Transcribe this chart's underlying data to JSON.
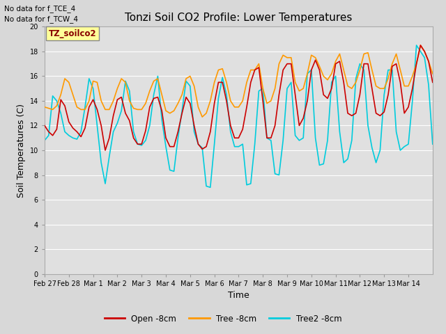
{
  "title": "Tonzi Soil CO2 Profile: Lower Temperatures",
  "xlabel": "Time",
  "ylabel": "Soil Temperatures (C)",
  "no_data_text": [
    "No data for f_TCE_4",
    "No data for f_TCW_4"
  ],
  "legend_label_text": "TZ_soilco2",
  "legend_label_bg": "#ffff99",
  "legend_label_border": "#888888",
  "ylim": [
    0,
    20
  ],
  "yticks": [
    0,
    2,
    4,
    6,
    8,
    10,
    12,
    14,
    16,
    18,
    20
  ],
  "bg_color": "#d8d8d8",
  "plot_bg_color": "#e0e0e0",
  "grid_color": "#ffffff",
  "line_open_color": "#cc0000",
  "line_tree_color": "#ff9900",
  "line_tree2_color": "#00ccdd",
  "line_width": 1.2,
  "xtick_labels": [
    "Feb 27",
    "Feb 28",
    "Mar 1",
    "Mar 2",
    "Mar 3",
    "Mar 4",
    "Mar 5",
    "Mar 6",
    "Mar 7",
    "Mar 8",
    "Mar 9",
    "Mar 10",
    "Mar 11",
    "Mar 12",
    "Mar 13",
    "Mar 14"
  ],
  "open_data": [
    12.0,
    11.5,
    11.2,
    11.7,
    14.1,
    13.6,
    12.3,
    11.8,
    11.5,
    11.1,
    11.8,
    13.5,
    14.1,
    13.3,
    12.0,
    10.0,
    11.0,
    12.8,
    14.1,
    14.3,
    13.0,
    12.4,
    11.0,
    10.5,
    10.5,
    11.6,
    13.5,
    14.2,
    14.3,
    13.2,
    11.0,
    10.3,
    10.3,
    11.5,
    13.0,
    14.3,
    13.8,
    12.0,
    10.5,
    10.1,
    10.3,
    11.5,
    13.8,
    15.5,
    15.5,
    14.0,
    12.0,
    11.0,
    11.0,
    11.7,
    13.5,
    15.5,
    16.5,
    16.7,
    14.0,
    11.0,
    11.0,
    12.0,
    14.5,
    16.5,
    17.0,
    17.0,
    14.5,
    12.0,
    12.6,
    14.0,
    16.5,
    17.3,
    16.5,
    14.5,
    14.2,
    15.0,
    17.0,
    17.2,
    15.5,
    13.0,
    12.8,
    13.0,
    14.5,
    17.0,
    17.0,
    15.0,
    13.0,
    12.8,
    13.1,
    14.5,
    16.8,
    17.0,
    15.5,
    13.0,
    13.5,
    15.0,
    17.0,
    18.5,
    18.0,
    17.2,
    15.5
  ],
  "tree_data": [
    13.5,
    13.4,
    13.3,
    13.6,
    14.5,
    15.8,
    15.5,
    14.5,
    13.5,
    13.3,
    13.3,
    14.0,
    15.6,
    15.5,
    14.0,
    13.3,
    13.3,
    14.0,
    15.0,
    15.8,
    15.5,
    14.0,
    13.4,
    13.3,
    13.3,
    13.8,
    14.8,
    15.6,
    15.8,
    14.5,
    13.2,
    13.0,
    13.2,
    13.8,
    14.5,
    15.8,
    16.0,
    15.2,
    13.5,
    12.7,
    13.0,
    14.0,
    15.5,
    16.5,
    16.6,
    15.5,
    14.0,
    13.5,
    13.5,
    14.0,
    15.5,
    16.5,
    16.5,
    17.0,
    15.0,
    13.8,
    14.0,
    15.0,
    17.0,
    17.7,
    17.5,
    17.5,
    15.5,
    14.8,
    15.0,
    16.2,
    17.7,
    17.5,
    16.8,
    16.0,
    15.7,
    16.2,
    17.2,
    17.8,
    16.5,
    15.2,
    15.0,
    15.5,
    16.5,
    17.8,
    17.9,
    16.5,
    15.2,
    15.0,
    15.0,
    15.8,
    17.0,
    17.8,
    16.5,
    15.2,
    15.2,
    16.0,
    17.0,
    18.5,
    18.0,
    17.2,
    16.2
  ],
  "tree2_data": [
    10.8,
    11.2,
    14.4,
    14.0,
    13.0,
    11.5,
    11.2,
    11.0,
    10.9,
    11.5,
    13.5,
    15.8,
    15.0,
    12.0,
    9.0,
    7.3,
    9.5,
    11.5,
    12.2,
    13.2,
    15.6,
    14.8,
    11.5,
    10.5,
    10.4,
    10.8,
    12.0,
    14.5,
    16.0,
    12.5,
    10.3,
    8.4,
    8.3,
    11.0,
    13.2,
    15.6,
    15.2,
    11.5,
    10.5,
    10.2,
    7.1,
    7.0,
    10.5,
    14.2,
    15.9,
    14.5,
    11.5,
    10.3,
    10.3,
    10.5,
    7.2,
    7.3,
    10.5,
    14.8,
    15.0,
    11.0,
    10.8,
    8.1,
    8.0,
    10.8,
    15.0,
    15.5,
    11.2,
    10.8,
    11.0,
    16.2,
    16.5,
    11.0,
    8.8,
    8.9,
    10.8,
    15.5,
    16.0,
    11.5,
    9.0,
    9.3,
    10.8,
    15.8,
    17.0,
    16.5,
    12.0,
    10.2,
    9.0,
    10.0,
    14.5,
    16.5,
    16.5,
    11.5,
    10.0,
    10.3,
    10.5,
    14.0,
    18.5,
    18.0,
    17.5,
    15.3,
    10.5
  ]
}
